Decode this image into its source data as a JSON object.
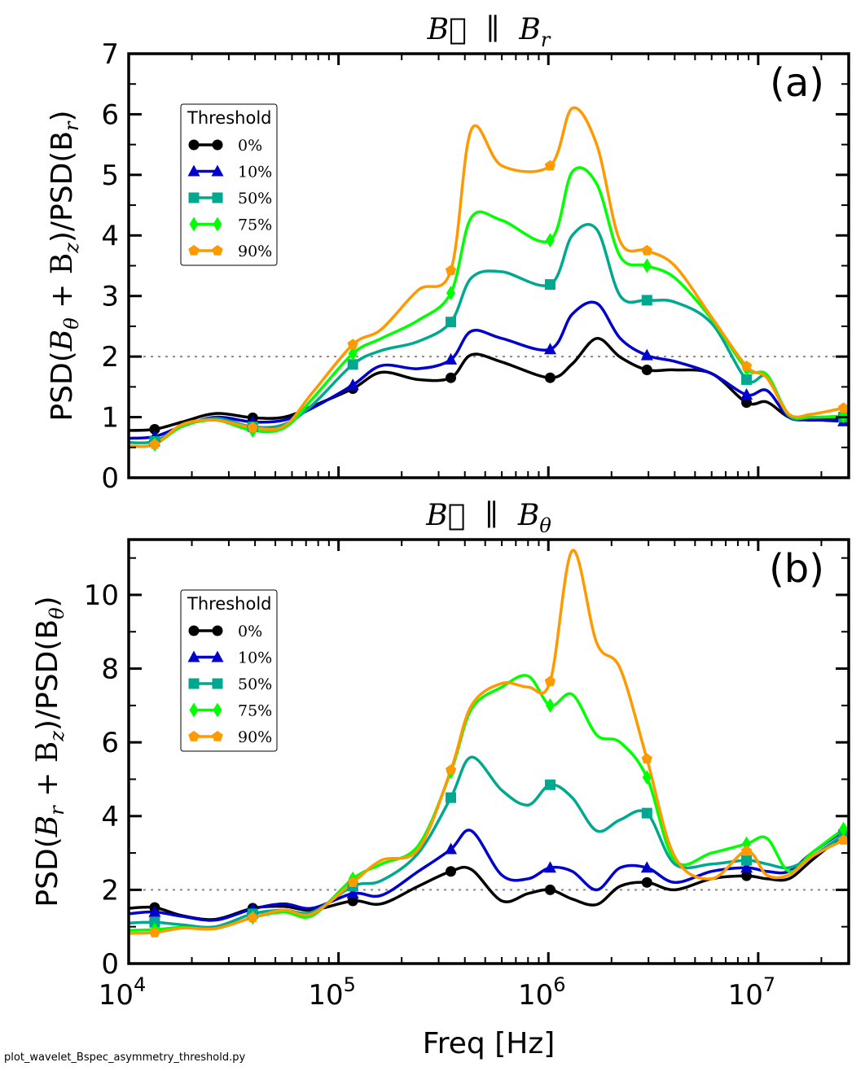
{
  "chart_data": [
    {
      "type": "line",
      "panel_label": "(a)",
      "title": "B⃗  ∥  B_r",
      "title_main": "B⃗",
      "title_sym": "∥",
      "title_b": "B",
      "title_sub": "r",
      "ylabel": "PSD(B_θ + B_z)/PSD(B_r)",
      "ylabel_pre": "PSD(",
      "ylabel_mid": "B",
      "ylabel_sub1": "θ",
      "ylabel_plus": " + B",
      "ylabel_sub2": "z",
      "ylabel_post": ")/PSD(B",
      "ylabel_sub3": "r",
      "ylabel_end": ")",
      "xscale": "log",
      "xlim": [
        10000,
        27000000
      ],
      "ylim": [
        0,
        7
      ],
      "yticks": [
        0,
        1,
        2,
        3,
        4,
        5,
        6,
        7
      ],
      "ytick_labels": [
        "0",
        "1",
        "2",
        "3",
        "4",
        "5",
        "6",
        "7"
      ],
      "reference_line": 2,
      "legend_title": "Threshold",
      "legend_position": "upper-left",
      "marker_x": [
        13300,
        39000,
        117000,
        343000,
        1020000,
        2950000,
        8800000,
        25500000
      ],
      "series": [
        {
          "name": "0%",
          "color": "#000000",
          "marker": "circle",
          "x": [
            10000,
            13300,
            18000,
            26000,
            39000,
            55000,
            75000,
            117000,
            160000,
            240000,
            343000,
            430000,
            600000,
            1020000,
            1300000,
            1700000,
            2200000,
            2950000,
            4000000,
            6000000,
            8800000,
            11000000,
            14000000,
            18000000,
            25500000
          ],
          "y": [
            0.78,
            0.8,
            0.92,
            1.06,
            0.99,
            1.0,
            1.18,
            1.47,
            1.74,
            1.62,
            1.65,
            2.03,
            1.91,
            1.65,
            1.88,
            2.3,
            1.99,
            1.78,
            1.78,
            1.72,
            1.24,
            1.25,
            1.0,
            0.95,
            0.98
          ]
        },
        {
          "name": "10%",
          "color": "#0000cc",
          "marker": "triangle",
          "x": [
            10000,
            13300,
            18000,
            26000,
            39000,
            55000,
            75000,
            117000,
            160000,
            240000,
            343000,
            430000,
            600000,
            1020000,
            1300000,
            1700000,
            2200000,
            2950000,
            4000000,
            6000000,
            8800000,
            11000000,
            14000000,
            18000000,
            25500000
          ],
          "y": [
            0.65,
            0.68,
            0.85,
            1.0,
            0.92,
            0.95,
            1.15,
            1.53,
            1.85,
            1.8,
            1.95,
            2.42,
            2.3,
            2.12,
            2.7,
            2.88,
            2.3,
            2.02,
            1.92,
            1.72,
            1.37,
            1.44,
            1.0,
            0.96,
            0.93
          ]
        },
        {
          "name": "50%",
          "color": "#00a88f",
          "marker": "square",
          "x": [
            10000,
            13300,
            18000,
            26000,
            39000,
            55000,
            75000,
            117000,
            160000,
            240000,
            343000,
            430000,
            600000,
            1020000,
            1300000,
            1700000,
            2200000,
            2950000,
            4000000,
            6000000,
            8800000,
            11000000,
            14000000,
            18000000,
            25500000
          ],
          "y": [
            0.58,
            0.6,
            0.85,
            0.98,
            0.84,
            0.88,
            1.2,
            1.87,
            2.1,
            2.25,
            2.57,
            3.3,
            3.4,
            3.19,
            4.0,
            4.1,
            3.0,
            2.93,
            2.9,
            2.55,
            1.62,
            1.67,
            1.02,
            1.0,
            1.0
          ]
        },
        {
          "name": "75%",
          "color": "#00ff00",
          "marker": "diamond",
          "x": [
            10000,
            13300,
            18000,
            26000,
            39000,
            55000,
            75000,
            117000,
            160000,
            240000,
            343000,
            430000,
            600000,
            1020000,
            1300000,
            1700000,
            2200000,
            2950000,
            4000000,
            6000000,
            8800000,
            11000000,
            14000000,
            18000000,
            25500000
          ],
          "y": [
            0.52,
            0.55,
            0.85,
            0.95,
            0.78,
            0.82,
            1.3,
            2.05,
            2.3,
            2.6,
            3.05,
            4.3,
            4.25,
            3.92,
            5.05,
            4.85,
            3.65,
            3.5,
            3.3,
            2.62,
            1.8,
            1.7,
            1.05,
            1.0,
            1.02
          ]
        },
        {
          "name": "90%",
          "color": "#ff9900",
          "marker": "pentagon",
          "x": [
            10000,
            13300,
            18000,
            26000,
            39000,
            55000,
            75000,
            117000,
            160000,
            240000,
            343000,
            430000,
            600000,
            1020000,
            1300000,
            1700000,
            2200000,
            2950000,
            4000000,
            6000000,
            8800000,
            11000000,
            14000000,
            18000000,
            25500000
          ],
          "y": [
            0.52,
            0.55,
            0.88,
            0.95,
            0.83,
            0.85,
            1.4,
            2.2,
            2.45,
            3.1,
            3.42,
            5.75,
            5.15,
            5.15,
            6.1,
            5.5,
            3.9,
            3.75,
            3.5,
            2.65,
            1.84,
            1.65,
            1.05,
            1.05,
            1.15
          ]
        }
      ]
    },
    {
      "type": "line",
      "panel_label": "(b)",
      "title": "B⃗  ∥  B_θ",
      "title_main": "B⃗",
      "title_sym": "∥",
      "title_b": "B",
      "title_sub": "θ",
      "ylabel": "PSD(B_r + B_z)/PSD(B_θ)",
      "ylabel_pre": "PSD(",
      "ylabel_mid": "B",
      "ylabel_sub1": "r",
      "ylabel_plus": " + B",
      "ylabel_sub2": "z",
      "ylabel_post": ")/PSD(B",
      "ylabel_sub3": "θ",
      "ylabel_end": ")",
      "xscale": "log",
      "xlim": [
        10000,
        27000000
      ],
      "ylim": [
        0,
        11.5
      ],
      "yticks": [
        0,
        2,
        4,
        6,
        8,
        10
      ],
      "ytick_labels": [
        "0",
        "2",
        "4",
        "6",
        "8",
        "10"
      ],
      "reference_line": 2,
      "legend_title": "Threshold",
      "legend_position": "upper-left",
      "xlabel": "Freq [Hz]",
      "xtick_labels": [
        {
          "base": "10",
          "exp": "4"
        },
        {
          "base": "10",
          "exp": "5"
        },
        {
          "base": "10",
          "exp": "6"
        },
        {
          "base": "10",
          "exp": "7"
        }
      ],
      "series": [
        {
          "name": "0%",
          "color": "#000000",
          "marker": "circle",
          "x": [
            10000,
            13300,
            18000,
            26000,
            39000,
            55000,
            75000,
            117000,
            160000,
            240000,
            343000,
            430000,
            600000,
            800000,
            1020000,
            1300000,
            1700000,
            2200000,
            2950000,
            4000000,
            6000000,
            8800000,
            11000000,
            14000000,
            18000000,
            25500000
          ],
          "y": [
            1.5,
            1.52,
            1.3,
            1.2,
            1.5,
            1.55,
            1.45,
            1.7,
            1.62,
            2.1,
            2.5,
            2.55,
            1.7,
            1.9,
            2.0,
            1.75,
            1.6,
            2.1,
            2.2,
            2.0,
            2.3,
            2.38,
            2.3,
            2.3,
            2.8,
            3.5
          ]
        },
        {
          "name": "10%",
          "color": "#0000cc",
          "marker": "triangle",
          "x": [
            10000,
            13300,
            18000,
            26000,
            39000,
            55000,
            75000,
            117000,
            160000,
            240000,
            343000,
            430000,
            600000,
            800000,
            1020000,
            1300000,
            1700000,
            2200000,
            2950000,
            4000000,
            6000000,
            8800000,
            11000000,
            14000000,
            18000000,
            25500000
          ],
          "y": [
            1.35,
            1.4,
            1.28,
            1.18,
            1.48,
            1.62,
            1.5,
            1.9,
            1.85,
            2.5,
            3.1,
            3.6,
            2.4,
            2.3,
            2.6,
            2.5,
            2.0,
            2.6,
            2.6,
            2.2,
            2.5,
            2.6,
            2.5,
            2.5,
            3.0,
            3.6
          ]
        },
        {
          "name": "50%",
          "color": "#00a88f",
          "marker": "square",
          "x": [
            10000,
            13300,
            18000,
            26000,
            39000,
            55000,
            75000,
            117000,
            160000,
            240000,
            343000,
            430000,
            600000,
            800000,
            1020000,
            1300000,
            1700000,
            2200000,
            2950000,
            4000000,
            6000000,
            8800000,
            11000000,
            14000000,
            18000000,
            25500000
          ],
          "y": [
            1.1,
            1.12,
            1.05,
            1.0,
            1.35,
            1.45,
            1.4,
            2.1,
            2.25,
            3.0,
            4.5,
            5.6,
            4.7,
            4.3,
            4.85,
            4.5,
            3.6,
            3.9,
            4.08,
            2.7,
            2.7,
            2.8,
            2.7,
            2.6,
            2.9,
            3.5
          ]
        },
        {
          "name": "75%",
          "color": "#00ff00",
          "marker": "diamond",
          "x": [
            10000,
            13300,
            18000,
            26000,
            39000,
            55000,
            75000,
            117000,
            160000,
            240000,
            343000,
            430000,
            600000,
            800000,
            1020000,
            1300000,
            1700000,
            2200000,
            2950000,
            4000000,
            6000000,
            8800000,
            11000000,
            14000000,
            18000000,
            25500000
          ],
          "y": [
            0.9,
            0.92,
            0.98,
            0.95,
            1.25,
            1.4,
            1.3,
            2.3,
            2.7,
            3.2,
            5.2,
            6.9,
            7.5,
            7.8,
            7.0,
            7.3,
            6.2,
            6.0,
            5.05,
            2.8,
            3.0,
            3.25,
            3.4,
            2.5,
            3.0,
            3.65
          ]
        },
        {
          "name": "90%",
          "color": "#ff9900",
          "marker": "pentagon",
          "x": [
            10000,
            13300,
            18000,
            26000,
            39000,
            55000,
            75000,
            117000,
            160000,
            240000,
            343000,
            430000,
            600000,
            800000,
            1020000,
            1300000,
            1700000,
            2200000,
            2950000,
            4000000,
            6000000,
            8800000,
            11000000,
            14000000,
            18000000,
            25500000
          ],
          "y": [
            0.82,
            0.84,
            0.96,
            0.95,
            1.25,
            1.45,
            1.35,
            2.2,
            2.8,
            3.1,
            5.25,
            7.0,
            7.6,
            7.5,
            7.65,
            11.2,
            8.7,
            8.0,
            5.55,
            2.9,
            2.3,
            3.05,
            2.4,
            2.4,
            2.9,
            3.35
          ]
        }
      ]
    }
  ],
  "footer": "plot_wavelet_Bspec_asymmetry_threshold.py"
}
